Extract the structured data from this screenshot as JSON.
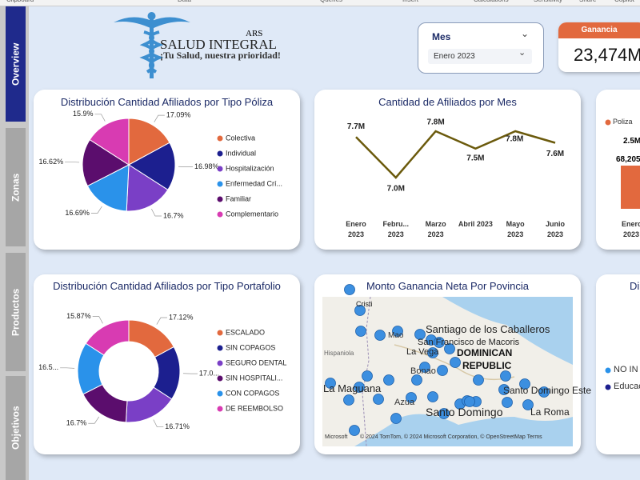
{
  "ribbon": {
    "groups": [
      "Clipboard",
      "Data",
      "Queries",
      "Insert",
      "Calculations",
      "Sensitivity",
      "Share",
      "Copilot"
    ]
  },
  "nav": {
    "tabs": [
      "Overview",
      "Zonas",
      "Productos",
      "Objetivos"
    ]
  },
  "logo": {
    "brand": "ARS",
    "title": "SALUD INTEGRAL",
    "slogan": "¡Tu Salud, nuestra prioridad!"
  },
  "slicer": {
    "label": "Mes",
    "value": "Enero 2023"
  },
  "kpi": {
    "label": "Ganancia",
    "value": "23,474M"
  },
  "chart_data": [
    {
      "type": "pie",
      "title": "Distribución Cantidad Afiliados por Tipo Póliza",
      "categories": [
        "Colectiva",
        "Individual",
        "Hospitalización",
        "Enfermedad Crí...",
        "Familiar",
        "Complementario"
      ],
      "values": [
        17.09,
        16.98,
        16.7,
        16.69,
        16.62,
        15.9
      ],
      "value_labels": [
        "17.09%",
        "16.98%",
        "16.7%",
        "16.69%",
        "16.62%",
        "15.9%"
      ],
      "colors": [
        "#e2693e",
        "#1c1f8f",
        "#7a3fc6",
        "#2a92ea",
        "#5b0d6d",
        "#d83bb2"
      ]
    },
    {
      "type": "line",
      "title": "Cantidad de Afiliados por Mes",
      "categories": [
        "Enero 2023",
        "Febru... 2023",
        "Marzo 2023",
        "Abril 2023",
        "Mayo 2023",
        "Junio 2023"
      ],
      "values": [
        7700000,
        7000000,
        7800000,
        7500000,
        7800000,
        7600000
      ],
      "value_labels": [
        "7.7M",
        "7.0M",
        "7.8M",
        "7.5M",
        "7.8M",
        "7.6M"
      ],
      "color": "#6b5a0c"
    },
    {
      "type": "donut",
      "title": "Distribución Cantidad Afiliados por Tipo Portafolio",
      "categories": [
        "ESCALADO",
        "SIN COPAGOS",
        "SEGURO DENTAL",
        "SIN HOSPITALI...",
        "CON COPAGOS",
        "DE REEMBOLSO"
      ],
      "values": [
        17.12,
        17.05,
        16.71,
        16.7,
        16.55,
        15.87
      ],
      "value_labels": [
        "17.12%",
        "17.0...",
        "16.71%",
        "16.7%",
        "16.5...",
        "15.87%"
      ],
      "colors": [
        "#e2693e",
        "#1c1f8f",
        "#7a3fc6",
        "#5b0d6d",
        "#2a92ea",
        "#d83bb2"
      ]
    }
  ],
  "map": {
    "title": "Monto Ganancia Neta Por Povincia",
    "places": [
      "Cristi",
      "Mao",
      "Santiago de los Caballeros",
      "San Francisco de Macoris",
      "La Vega",
      "DOMINICAN",
      "REPUBLIC",
      "Hispaniola",
      "Bonao",
      "La Maguana",
      "Azua",
      "Santo Domingo",
      "Santo Domingo Este",
      "La Roma"
    ],
    "credit": "© 2024 TomTom, © 2024 Microsoft Corporation, © OpenStreetMap  Terms",
    "brand": "Microsoft"
  },
  "partial_cards": {
    "right_top": {
      "legend": [
        "Poliza"
      ],
      "labels": [
        "2.5M",
        "68,205",
        "Enero",
        "2023"
      ]
    },
    "right_bottom": {
      "title": "Di",
      "legend": [
        "NO IN",
        "Educac"
      ]
    }
  }
}
